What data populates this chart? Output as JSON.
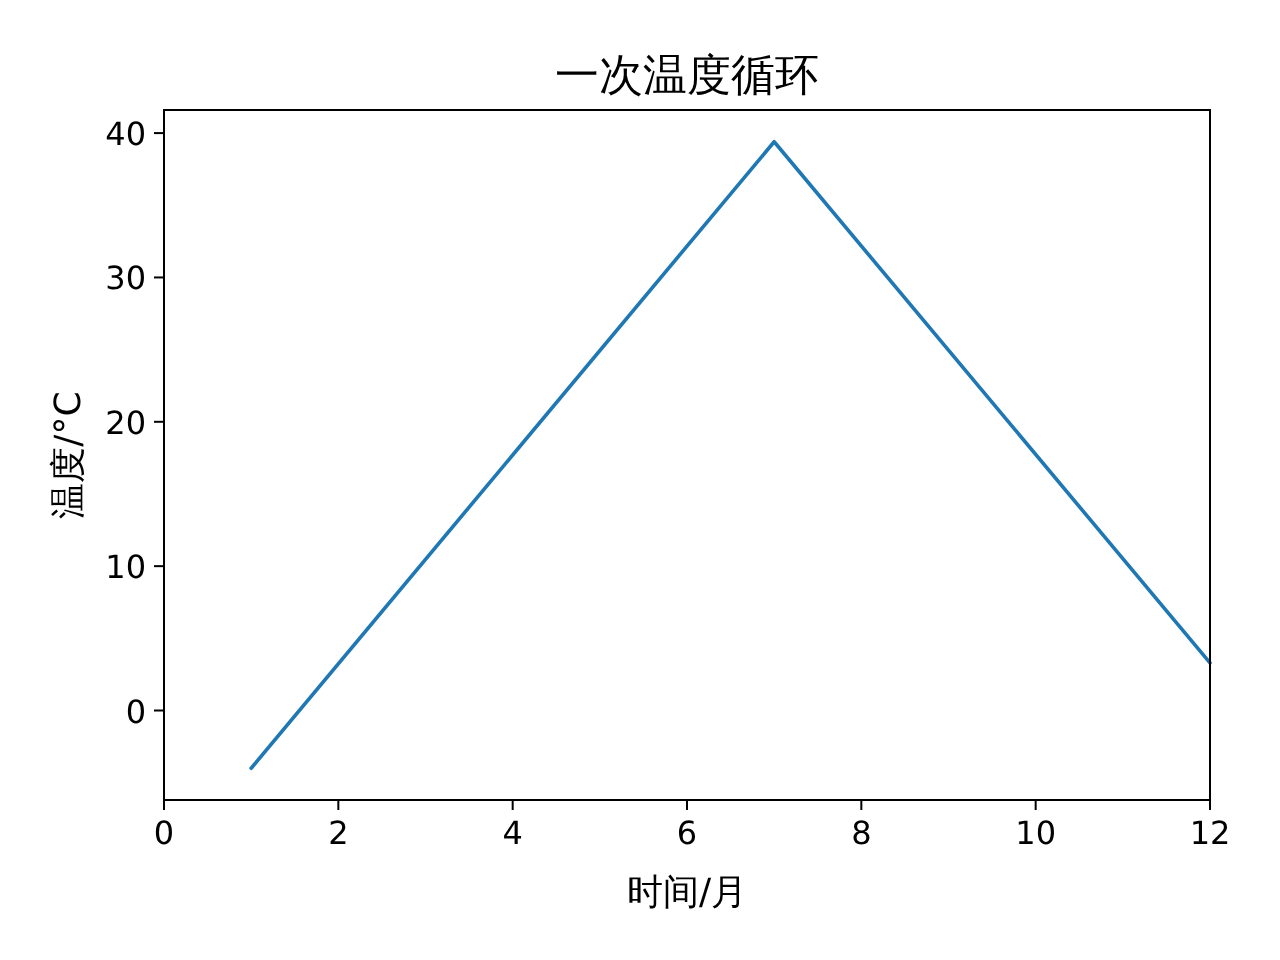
{
  "chart_data": {
    "type": "line",
    "title": "一次温度循环",
    "xlabel": "时间/月",
    "ylabel": "温度/°C",
    "x": [
      1,
      7,
      12
    ],
    "series": [
      {
        "color": "#1f77b4",
        "values": [
          -4,
          39.4,
          3.3
        ]
      }
    ],
    "xlim": [
      0,
      12
    ],
    "xticks": [
      0,
      2,
      4,
      6,
      8,
      10,
      12
    ],
    "ylim": [
      -6.2,
      41.6
    ],
    "yticks": [
      0,
      10,
      20,
      30,
      40
    ],
    "grid": false,
    "marker": "none",
    "line_style": "solid"
  }
}
